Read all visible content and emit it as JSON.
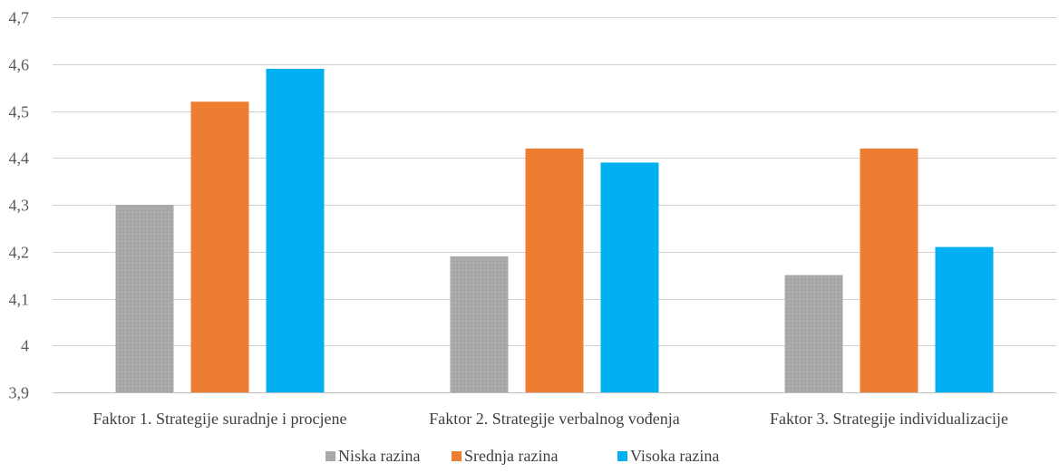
{
  "chart_data": {
    "type": "bar",
    "title": "",
    "xlabel": "",
    "ylabel": "",
    "categories": [
      "Faktor 1. Strategije suradnje i procjene",
      "Faktor 2. Strategije verbalnog vođenja",
      "Faktor 3. Strategije individualizacije"
    ],
    "series": [
      {
        "name": "Niska razina",
        "values": [
          4.3,
          4.19,
          4.15
        ],
        "color": "#a5a5a5"
      },
      {
        "name": "Srednja razina",
        "values": [
          4.52,
          4.42,
          4.42
        ],
        "color": "#ed7d31"
      },
      {
        "name": "Visoka razina",
        "values": [
          4.59,
          4.39,
          4.21
        ],
        "color": "#00b0f0"
      }
    ],
    "ylim": [
      3.9,
      4.7
    ],
    "ytick_labels": [
      "3,9",
      "4",
      "4,1",
      "4,2",
      "4,3",
      "4,4",
      "4,5",
      "4,6",
      "4,7"
    ],
    "grid": true,
    "legend_position": "bottom"
  }
}
